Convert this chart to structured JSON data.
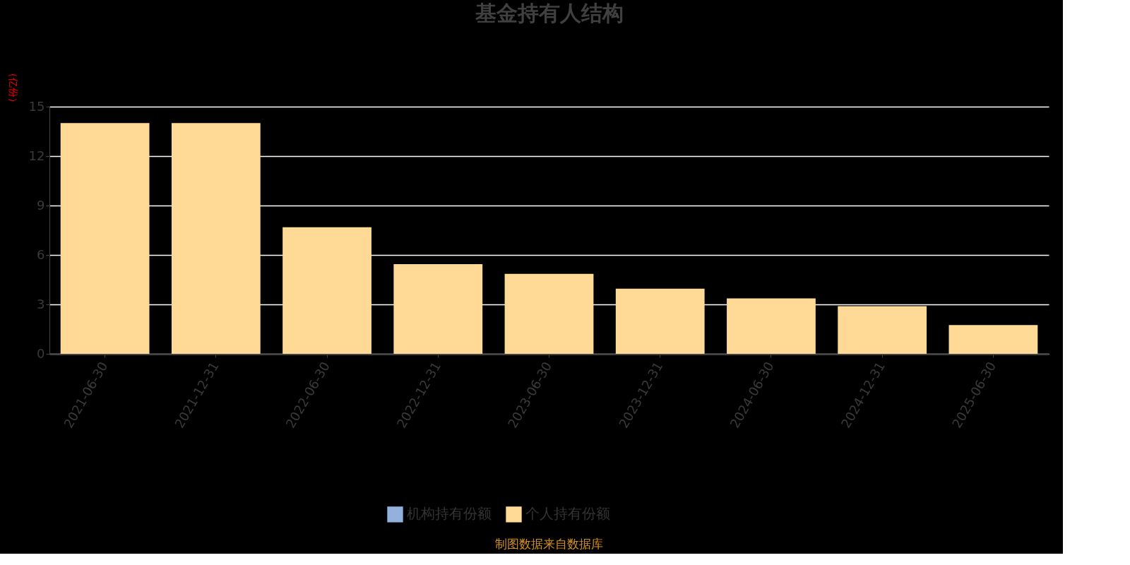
{
  "chart_data": {
    "type": "bar",
    "title": "基金持有人结构",
    "ylabel": "（亿份）",
    "categories": [
      "2021-06-30",
      "2021-12-31",
      "2022-06-30",
      "2022-12-31",
      "2023-06-30",
      "2023-12-31",
      "2024-06-30",
      "2024-12-31",
      "2025-06-30"
    ],
    "series": [
      {
        "name": "机构持有份额",
        "color": "#92b1dc",
        "values": [
          null,
          null,
          null,
          null,
          null,
          null,
          null,
          null,
          null
        ]
      },
      {
        "name": "个人持有份额",
        "color": "#ffd996",
        "values": [
          14.0,
          14.0,
          7.68,
          5.44,
          4.85,
          3.95,
          3.36,
          2.89,
          1.75
        ]
      }
    ],
    "ylim": [
      0,
      15
    ],
    "yticks": [
      0,
      3,
      6,
      9,
      12,
      15
    ],
    "grid": "y",
    "legend": "bottom",
    "annotations": [
      "制图数据来自数据库"
    ]
  }
}
